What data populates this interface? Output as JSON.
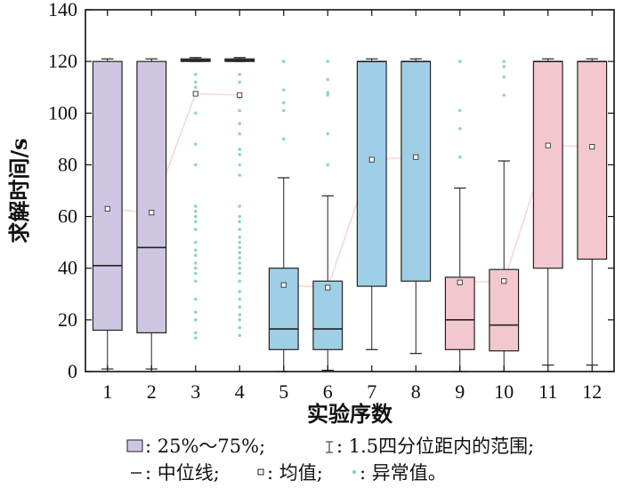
{
  "chart_data": {
    "type": "box",
    "xlabel": "实验序数",
    "ylabel": "求解时间/s",
    "ylim": [
      0,
      140
    ],
    "yticks": [
      0,
      20,
      40,
      60,
      80,
      100,
      120,
      140
    ],
    "categories": [
      "1",
      "2",
      "3",
      "4",
      "5",
      "6",
      "7",
      "8",
      "9",
      "10",
      "11",
      "12"
    ],
    "grid": false,
    "legend": {
      "placement": "bottom",
      "line1": [
        {
          "symbol": "box",
          "text": ": 25%～75%;"
        },
        {
          "symbol": "whisker",
          "text": ": 1.5四分位距内的范围;"
        }
      ],
      "line2": [
        {
          "symbol": "median",
          "text": ": 中位线;"
        },
        {
          "symbol": "mean",
          "text": ": 均值;"
        },
        {
          "symbol": "outlier",
          "text": ": 异常值。"
        }
      ]
    },
    "colors": {
      "purple": "#cfc6e3",
      "blue": "#9fcfe6",
      "pink": "#f3c7d0",
      "outlier": "#8fd4c3",
      "mean_line": "#f6d7dc",
      "stroke": "#222222"
    },
    "boxes": [
      {
        "label": "1",
        "color": "purple",
        "whisker_low": 1,
        "q1": 16,
        "median": 41,
        "q3": 120,
        "whisker_high": 121,
        "mean": 63,
        "outliers": []
      },
      {
        "label": "2",
        "color": "purple",
        "whisker_low": 1,
        "q1": 15,
        "median": 48,
        "q3": 120,
        "whisker_high": 121,
        "mean": 61.5,
        "outliers": []
      },
      {
        "label": "3",
        "color": "purple",
        "whisker_low": 120,
        "q1": 120,
        "median": 120.5,
        "q3": 121,
        "whisker_high": 121.5,
        "mean": 107.5,
        "outliers": [
          115,
          112,
          110,
          100,
          88,
          80,
          64,
          62,
          60,
          58,
          55,
          50,
          47,
          45,
          42,
          40,
          38,
          35,
          28,
          23,
          20,
          15,
          13
        ]
      },
      {
        "label": "4",
        "color": "purple",
        "whisker_low": 120,
        "q1": 120,
        "median": 120.5,
        "q3": 121,
        "whisker_high": 121.5,
        "mean": 107,
        "outliers": [
          115,
          112,
          106,
          101,
          96,
          92,
          86,
          84,
          80,
          76,
          64,
          60,
          58,
          55,
          52,
          50,
          48,
          46,
          44,
          42,
          40,
          38,
          35,
          31,
          28,
          25,
          22,
          20,
          17,
          14
        ]
      },
      {
        "label": "5",
        "color": "blue",
        "whisker_low": 0,
        "q1": 8.5,
        "median": 16.5,
        "q3": 40,
        "whisker_high": 75,
        "mean": 33.5,
        "outliers": [
          120,
          109,
          104,
          101,
          90
        ]
      },
      {
        "label": "6",
        "color": "blue",
        "whisker_low": 0.5,
        "q1": 8.5,
        "median": 16.5,
        "q3": 35,
        "whisker_high": 68,
        "mean": 32.5,
        "outliers": [
          120,
          113,
          108,
          107,
          92,
          80
        ]
      },
      {
        "label": "7",
        "color": "blue",
        "whisker_low": 8.5,
        "q1": 33,
        "median": 120,
        "q3": 120,
        "whisker_high": 121,
        "mean": 82,
        "outliers": []
      },
      {
        "label": "8",
        "color": "blue",
        "whisker_low": 7,
        "q1": 35,
        "median": 120,
        "q3": 120,
        "whisker_high": 121,
        "mean": 83,
        "outliers": []
      },
      {
        "label": "9",
        "color": "pink",
        "whisker_low": 0,
        "q1": 8.5,
        "median": 20,
        "q3": 36.5,
        "whisker_high": 71,
        "mean": 34.5,
        "outliers": [
          120,
          101,
          94,
          83
        ]
      },
      {
        "label": "10",
        "color": "pink",
        "whisker_low": 0,
        "q1": 8,
        "median": 18,
        "q3": 39.5,
        "whisker_high": 81.5,
        "mean": 35,
        "outliers": [
          120,
          118,
          114,
          107
        ]
      },
      {
        "label": "11",
        "color": "pink",
        "whisker_low": 2.5,
        "q1": 40,
        "median": 120,
        "q3": 120,
        "whisker_high": 121,
        "mean": 87.5,
        "outliers": []
      },
      {
        "label": "12",
        "color": "pink",
        "whisker_low": 2.5,
        "q1": 43.5,
        "median": 120,
        "q3": 120,
        "whisker_high": 121,
        "mean": 87,
        "outliers": []
      }
    ]
  }
}
